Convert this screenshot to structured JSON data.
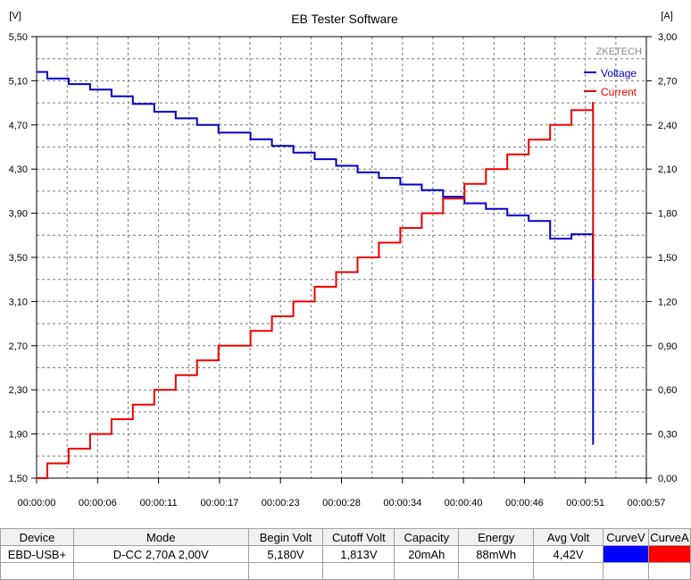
{
  "window": {
    "title": "EB Tester Software"
  },
  "chart_data": {
    "type": "line",
    "title": "EB Tester Software",
    "watermark": "ZKETECH",
    "y_left_unit": "[V]",
    "y_right_unit": "[A]",
    "y_left_lim": [
      1.5,
      5.5
    ],
    "y_right_lim": [
      0.0,
      3.0
    ],
    "x_lim": [
      0,
      57
    ],
    "y_left_ticks": [
      "5,50",
      "5,10",
      "4,70",
      "4,30",
      "3,90",
      "3,50",
      "3,10",
      "2,70",
      "2,30",
      "1,90",
      "1,50"
    ],
    "y_right_ticks": [
      "3,00",
      "2,70",
      "2,40",
      "2,10",
      "1,80",
      "1,50",
      "1,20",
      "0,90",
      "0,60",
      "0,30",
      "0,00"
    ],
    "x_ticks": [
      "00:00:00",
      "00:00:06",
      "00:00:11",
      "00:00:17",
      "00:00:23",
      "00:00:28",
      "00:00:34",
      "00:00:40",
      "00:00:46",
      "00:00:51",
      "00:00:57"
    ],
    "grid": true,
    "legend_position": "top-right",
    "series": [
      {
        "name": "Voltage",
        "axis": "left",
        "color": "#0000cc",
        "step_times": [
          0,
          1,
          3,
          5,
          7,
          9,
          11,
          13,
          15,
          17,
          20,
          22,
          24,
          26,
          28,
          30,
          32,
          34,
          36,
          38,
          40,
          42,
          44,
          46,
          48,
          50,
          52,
          52.02
        ],
        "values": [
          5.18,
          5.12,
          5.07,
          5.02,
          4.96,
          4.89,
          4.82,
          4.76,
          4.7,
          4.63,
          4.57,
          4.51,
          4.45,
          4.39,
          4.33,
          4.27,
          4.22,
          4.16,
          4.11,
          4.05,
          3.99,
          3.94,
          3.88,
          3.83,
          3.67,
          3.71,
          3.3,
          1.81
        ]
      },
      {
        "name": "Current",
        "axis": "right",
        "color": "#ee0000",
        "step_times": [
          0,
          1,
          3,
          5,
          7,
          9,
          11,
          13,
          15,
          17,
          20,
          22,
          24,
          26,
          28,
          30,
          32,
          34,
          36,
          38,
          40,
          42,
          44,
          46,
          48,
          50,
          52,
          52.02
        ],
        "values": [
          0.0,
          0.1,
          0.2,
          0.3,
          0.4,
          0.5,
          0.6,
          0.7,
          0.8,
          0.9,
          1.0,
          1.1,
          1.2,
          1.3,
          1.4,
          1.5,
          1.6,
          1.7,
          1.8,
          1.9,
          2.0,
          2.1,
          2.2,
          2.3,
          2.4,
          2.5,
          2.55,
          1.35
        ]
      }
    ]
  },
  "table": {
    "headers": [
      "Device",
      "Mode",
      "Begin Volt",
      "Cutoff Volt",
      "Capacity",
      "Energy",
      "Avg Volt",
      "CurveV",
      "CurveA"
    ],
    "row": [
      "EBD-USB+",
      "D-CC  2,70A  2,00V",
      "5,180V",
      "1,813V",
      "20mAh",
      "88mWh",
      "4,42V"
    ],
    "curve_colors": [
      "#0000ff",
      "#ff0000"
    ]
  }
}
